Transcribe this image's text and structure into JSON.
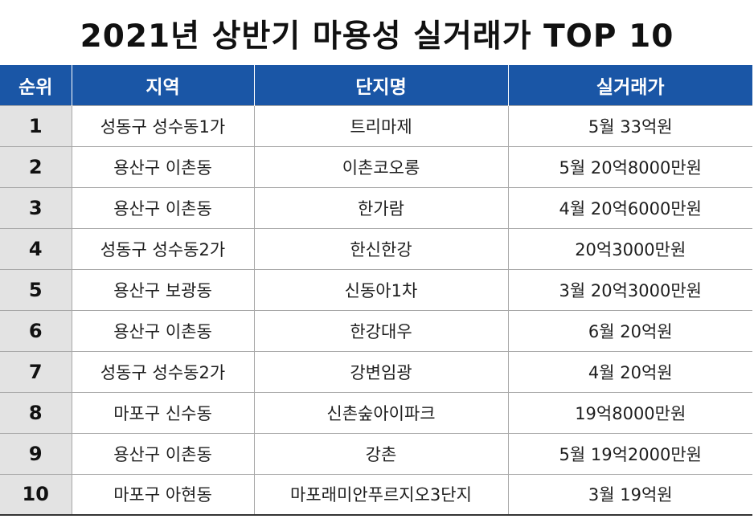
{
  "title": "2021년 상반기 마용성 실거래가 TOP 10",
  "header": {
    "rank": "순위",
    "region": "지역",
    "complex": "단지명",
    "price": "실거래가"
  },
  "rows": [
    {
      "rank": "1",
      "region": "성동구 성수동1가",
      "complex": "트리마제",
      "price": "5월 33억원"
    },
    {
      "rank": "2",
      "region": "용산구 이촌동",
      "complex": "이촌코오롱",
      "price": "5월 20억8000만원"
    },
    {
      "rank": "3",
      "region": "용산구 이촌동",
      "complex": "한가람",
      "price": "4월 20억6000만원"
    },
    {
      "rank": "4",
      "region": "성동구 성수동2가",
      "complex": "한신한강",
      "price": "20억3000만원"
    },
    {
      "rank": "5",
      "region": "용산구 보광동",
      "complex": "신동아1차",
      "price": "3월 20억3000만원"
    },
    {
      "rank": "6",
      "region": "용산구 이촌동",
      "complex": "한강대우",
      "price": "6월 20억원"
    },
    {
      "rank": "7",
      "region": "성동구 성수동2가",
      "complex": "강변임광",
      "price": "4월 20억원"
    },
    {
      "rank": "8",
      "region": "마포구 신수동",
      "complex": "신촌숲아이파크",
      "price": "19억8000만원"
    },
    {
      "rank": "9",
      "region": "용산구 이촌동",
      "complex": "강촌",
      "price": "5월 19억2000만원"
    },
    {
      "rank": "10",
      "region": "마포구 아현동",
      "complex": "마포래미안푸르지오3단지",
      "price": "3월 19억원"
    }
  ],
  "colors": {
    "header_bg": "#1a56a6",
    "rank_cell_bg": "#e3e3e3"
  }
}
